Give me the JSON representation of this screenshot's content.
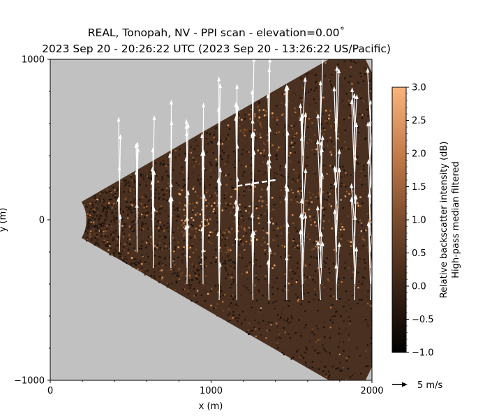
{
  "chart_data": {
    "type": "heatmap",
    "title_line1": "REAL, Tonopah, NV - PPI scan - elevation=0.00$^\\circ$",
    "title_line1_display": "REAL, Tonopah, NV - PPI scan - elevation=0.00˚",
    "title_line2": "2023 Sep 20 - 20:26:22 UTC (2023 Sep 20 - 13:26:22 US/Pacific)",
    "xlabel": "x (m)",
    "ylabel": "y (m)",
    "xlim": [
      0,
      2000
    ],
    "ylim": [
      -1000,
      1000
    ],
    "x_ticks": [
      "0",
      "1000",
      "2000"
    ],
    "y_ticks": [
      "1000",
      "0",
      "−1000"
    ],
    "colorbar": {
      "label_line1": "Relative backscatter intensity (dB)",
      "label_line2": "High-pass median filtered",
      "range": [
        -1.0,
        3.0
      ],
      "ticks": [
        "3.0",
        "2.5",
        "2.0",
        "1.5",
        "1.0",
        "0.5",
        "0.0",
        "−0.5",
        "−1.0"
      ],
      "colormap": "copper",
      "stops": [
        "#000000",
        "#3a2416",
        "#7a4c2e",
        "#c47c4b",
        "#fbb57a"
      ]
    },
    "scan_sector": {
      "min_range_m": 225,
      "max_range_m": 2200,
      "half_angle_deg": 30
    },
    "background_color": "#c1c1c1",
    "wind_vectors": {
      "reference_label": "5 m/s",
      "reference_speed_ms": 5,
      "columns_x": [
        430,
        540,
        640,
        750,
        850,
        950,
        1050,
        1160,
        1260,
        1360,
        1470,
        1570,
        1680,
        1780,
        1890,
        1990
      ],
      "typical_v_ms": 5.2,
      "vector_color": "#ffffff",
      "highlight_segment": {
        "from": [
          1160,
          210
        ],
        "to": [
          1410,
          250
        ],
        "style": "dashed",
        "color": "#ffffff"
      }
    }
  }
}
